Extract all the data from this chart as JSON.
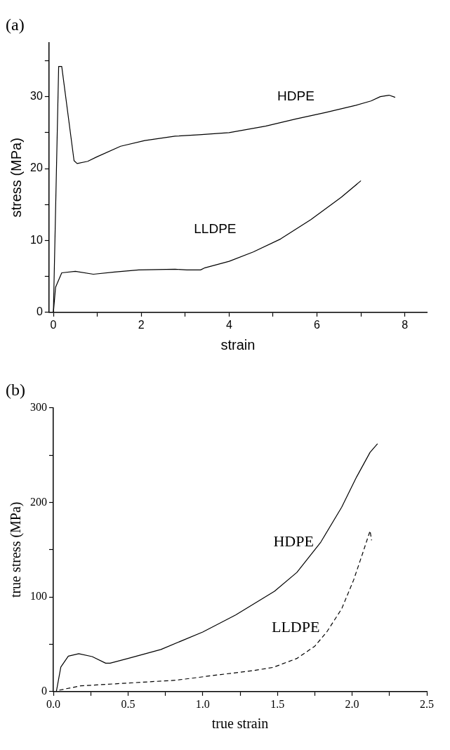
{
  "chart_data": [
    {
      "type": "line",
      "title": "(a)",
      "xlabel": "strain",
      "ylabel": "stress (MPa)",
      "xlim": [
        -0.1,
        8.5
      ],
      "ylim": [
        0,
        37.5
      ],
      "xticks": [
        0,
        {
          "value": 1,
          "label": null
        },
        2,
        {
          "value": 3,
          "label": null
        },
        4,
        {
          "value": 5,
          "label": null
        },
        6,
        {
          "value": 7,
          "label": null
        },
        8
      ],
      "yticks": [
        0,
        {
          "value": 5,
          "label": null
        },
        10,
        {
          "value": 15,
          "label": null
        },
        20,
        {
          "value": 25,
          "label": null
        },
        30,
        {
          "value": 35,
          "label": null
        }
      ],
      "grid": false,
      "legend": false,
      "marker": "none",
      "series": [
        {
          "name": "HDPE",
          "color": "#000000",
          "line_style": "solid",
          "x": [
            0,
            0.12,
            0.19,
            0.47,
            0.54,
            0.78,
            0.98,
            1.53,
            2.08,
            2.77,
            3.32,
            4.0,
            4.83,
            5.52,
            6.2,
            6.89,
            7.23,
            7.44,
            7.64,
            7.78
          ],
          "values": [
            0,
            34.2,
            34.2,
            21.1,
            20.7,
            21.0,
            21.6,
            23.1,
            23.9,
            24.5,
            24.7,
            25.0,
            25.9,
            26.9,
            27.8,
            28.8,
            29.4,
            30.0,
            30.2,
            29.9
          ]
        },
        {
          "name": "LLDPE",
          "color": "#000000",
          "line_style": "solid",
          "x": [
            0,
            0.05,
            0.19,
            0.5,
            0.91,
            1.39,
            1.94,
            2.77,
            3.04,
            3.35,
            3.45,
            4.0,
            4.55,
            5.17,
            5.86,
            6.55,
            7.0
          ],
          "values": [
            0,
            3.5,
            5.5,
            5.7,
            5.3,
            5.6,
            5.9,
            6.0,
            5.9,
            5.9,
            6.2,
            7.1,
            8.4,
            10.2,
            12.9,
            16.0,
            18.3
          ]
        }
      ]
    },
    {
      "type": "line",
      "title": "(b)",
      "xlabel": "true strain",
      "ylabel": "true stress (MPa)",
      "xlim": [
        0,
        2.5
      ],
      "ylim": [
        0,
        300
      ],
      "xticks": [
        {
          "value": 0,
          "label": "0.0"
        },
        {
          "value": 0.25,
          "label": null
        },
        0.5,
        {
          "value": 0.75,
          "label": null
        },
        {
          "value": 1,
          "label": "1.0"
        },
        {
          "value": 1.25,
          "label": null
        },
        1.5,
        {
          "value": 1.75,
          "label": null
        },
        {
          "value": 2,
          "label": "2.0"
        },
        {
          "value": 2.25,
          "label": null
        },
        2.5
      ],
      "yticks": [
        0,
        {
          "value": 50,
          "label": null
        },
        100,
        {
          "value": 150,
          "label": null
        },
        200,
        {
          "value": 250,
          "label": null
        },
        300
      ],
      "grid": false,
      "legend": false,
      "marker": "none",
      "series": [
        {
          "name": "HDPE",
          "color": "#000000",
          "line_style": "solid",
          "x": [
            0.02,
            0.05,
            0.1,
            0.17,
            0.26,
            0.35,
            0.38,
            0.5,
            0.72,
            1.0,
            1.22,
            1.48,
            1.63,
            1.79,
            1.93,
            2.03,
            2.12,
            2.17
          ],
          "values": [
            0,
            26,
            37.5,
            40,
            37,
            30,
            30,
            35,
            44.5,
            63,
            81,
            106,
            126,
            158,
            195,
            227,
            253,
            262
          ]
        },
        {
          "name": "LLDPE",
          "color": "#000000",
          "line_style": "dashed",
          "x": [
            0.04,
            0.18,
            0.5,
            0.82,
            1.12,
            1.33,
            1.47,
            1.63,
            1.75,
            1.83,
            1.93,
            2.01,
            2.07,
            2.12,
            2.13
          ],
          "values": [
            1.5,
            6,
            9,
            12,
            18,
            22,
            25.5,
            35,
            48,
            63,
            87.5,
            118,
            146,
            170,
            160
          ]
        }
      ]
    }
  ]
}
